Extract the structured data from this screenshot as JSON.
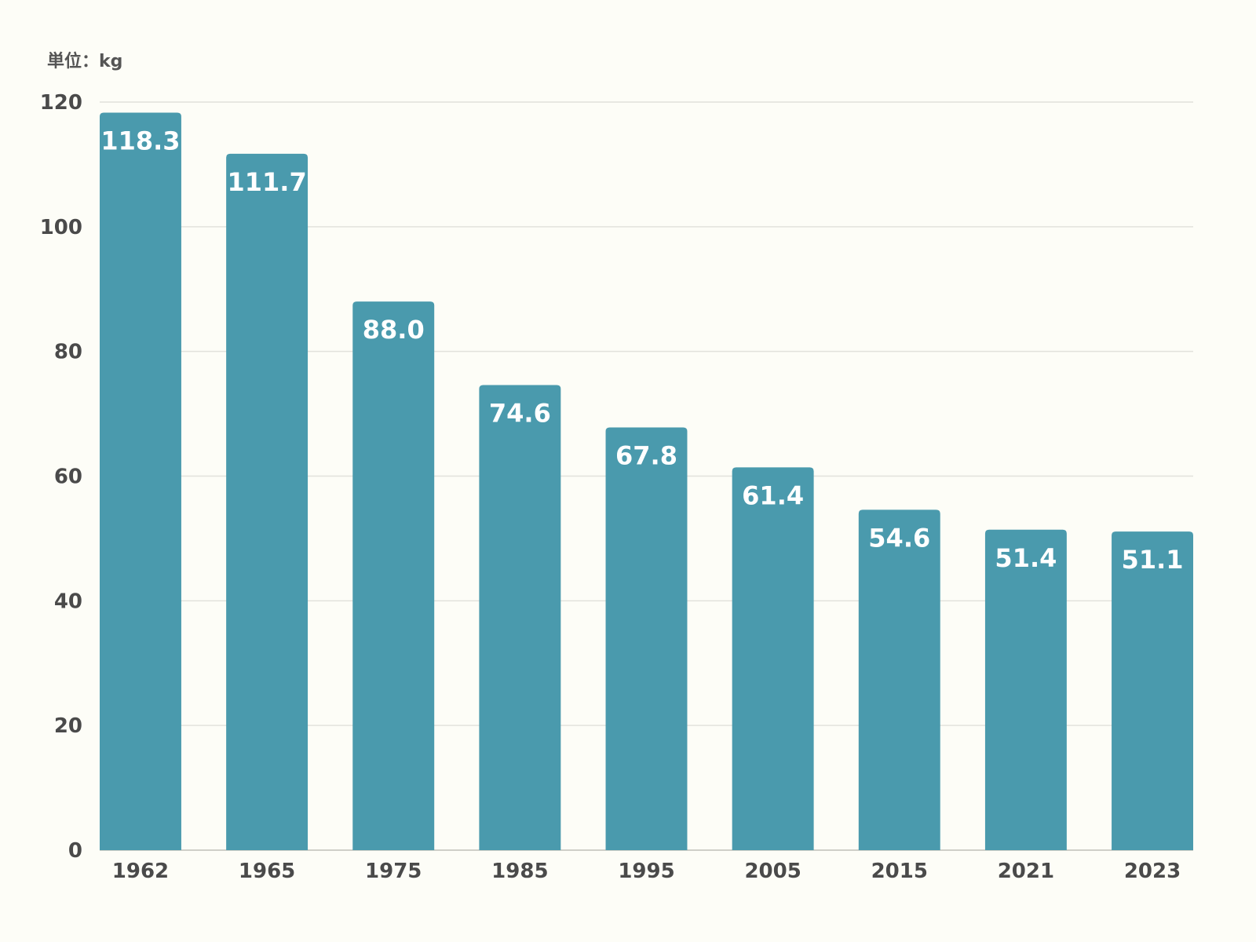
{
  "chart_data": {
    "type": "bar",
    "unit_label": "単位：kg",
    "categories": [
      "1962",
      "1965",
      "1975",
      "1985",
      "1995",
      "2005",
      "2015",
      "2021",
      "2023"
    ],
    "values": [
      118.3,
      111.7,
      88.0,
      74.6,
      67.8,
      61.4,
      54.6,
      51.4,
      51.1
    ],
    "value_labels": [
      "118.3",
      "111.7",
      "88.0",
      "74.6",
      "67.8",
      "61.4",
      "54.6",
      "51.4",
      "51.1"
    ],
    "ylim": [
      0,
      120
    ],
    "yticks": [
      0,
      20,
      40,
      60,
      80,
      100,
      120
    ],
    "grid": true,
    "legend": "none",
    "bar_color": "#4a9aad",
    "label_color": "#ffffff",
    "background": "#fdfdf7"
  }
}
